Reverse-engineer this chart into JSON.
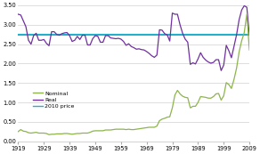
{
  "years": [
    1919,
    1920,
    1921,
    1922,
    1923,
    1924,
    1925,
    1926,
    1927,
    1928,
    1929,
    1930,
    1931,
    1932,
    1933,
    1934,
    1935,
    1936,
    1937,
    1938,
    1939,
    1940,
    1941,
    1942,
    1943,
    1944,
    1945,
    1946,
    1947,
    1948,
    1949,
    1950,
    1951,
    1952,
    1953,
    1954,
    1955,
    1956,
    1957,
    1958,
    1959,
    1960,
    1961,
    1962,
    1963,
    1964,
    1965,
    1966,
    1967,
    1968,
    1969,
    1970,
    1971,
    1972,
    1973,
    1974,
    1975,
    1976,
    1977,
    1978,
    1979,
    1980,
    1981,
    1982,
    1983,
    1984,
    1985,
    1986,
    1987,
    1988,
    1989,
    1990,
    1991,
    1992,
    1993,
    1994,
    1995,
    1996,
    1997,
    1998,
    1999,
    2000,
    2001,
    2002,
    2003,
    2004,
    2005,
    2006,
    2007,
    2008,
    2009
  ],
  "nominal": [
    0.25,
    0.3,
    0.26,
    0.25,
    0.22,
    0.21,
    0.22,
    0.23,
    0.21,
    0.21,
    0.21,
    0.2,
    0.17,
    0.18,
    0.18,
    0.19,
    0.19,
    0.19,
    0.2,
    0.2,
    0.19,
    0.18,
    0.19,
    0.2,
    0.2,
    0.21,
    0.21,
    0.21,
    0.23,
    0.26,
    0.27,
    0.27,
    0.27,
    0.27,
    0.29,
    0.29,
    0.29,
    0.3,
    0.31,
    0.31,
    0.31,
    0.31,
    0.3,
    0.31,
    0.3,
    0.3,
    0.31,
    0.32,
    0.33,
    0.34,
    0.35,
    0.36,
    0.36,
    0.36,
    0.39,
    0.53,
    0.57,
    0.59,
    0.62,
    0.63,
    0.86,
    1.19,
    1.31,
    1.22,
    1.16,
    1.13,
    1.12,
    0.86,
    0.9,
    0.9,
    1.0,
    1.15,
    1.14,
    1.13,
    1.11,
    1.11,
    1.15,
    1.22,
    1.23,
    1.06,
    1.17,
    1.51,
    1.46,
    1.36,
    1.59,
    1.88,
    2.3,
    2.59,
    2.8,
    3.27,
    2.35
  ],
  "real": [
    3.27,
    3.25,
    3.1,
    2.95,
    2.6,
    2.5,
    2.72,
    2.78,
    2.6,
    2.6,
    2.62,
    2.52,
    2.46,
    2.82,
    2.82,
    2.75,
    2.73,
    2.77,
    2.79,
    2.8,
    2.72,
    2.57,
    2.6,
    2.7,
    2.62,
    2.73,
    2.73,
    2.48,
    2.48,
    2.64,
    2.72,
    2.7,
    2.55,
    2.55,
    2.72,
    2.72,
    2.66,
    2.65,
    2.64,
    2.65,
    2.63,
    2.57,
    2.47,
    2.51,
    2.44,
    2.41,
    2.37,
    2.38,
    2.36,
    2.35,
    2.31,
    2.26,
    2.2,
    2.16,
    2.22,
    2.87,
    2.86,
    2.77,
    2.74,
    2.58,
    3.3,
    3.27,
    3.27,
    3.0,
    2.78,
    2.63,
    2.55,
    1.98,
    2.02,
    1.99,
    2.12,
    2.28,
    2.16,
    2.09,
    2.04,
    2.01,
    2.03,
    2.1,
    2.1,
    1.82,
    1.96,
    2.47,
    2.33,
    2.15,
    2.44,
    2.74,
    3.13,
    3.38,
    3.49,
    3.45,
    2.73
  ],
  "price_2010": 2.74,
  "nominal_color": "#8db54b",
  "real_color": "#7030a0",
  "price_2010_color": "#23b0cc",
  "ylim": [
    0.0,
    3.5
  ],
  "yticks": [
    0.0,
    0.5,
    1.0,
    1.5,
    2.0,
    2.5,
    3.0,
    3.5
  ],
  "xtick_years": [
    1919,
    1929,
    1939,
    1949,
    1959,
    1969,
    1979,
    1989,
    1999,
    2009
  ],
  "legend_labels": [
    "Nominal",
    "Real",
    "2010 price"
  ],
  "bg_color": "#ffffff",
  "grid_color": "#d0d0d0"
}
